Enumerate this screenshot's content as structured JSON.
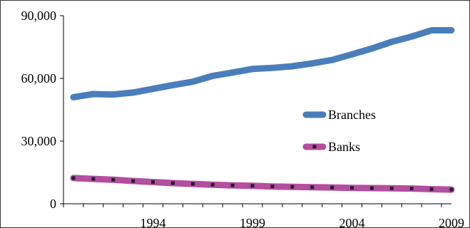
{
  "chart_data": {
    "type": "line",
    "title": "",
    "xlabel": "",
    "ylabel": "",
    "x": [
      1990,
      1991,
      1992,
      1993,
      1994,
      1995,
      1996,
      1997,
      1998,
      1999,
      2000,
      2001,
      2002,
      2003,
      2004,
      2005,
      2006,
      2007,
      2008,
      2009
    ],
    "x_ticks": [
      "1994",
      "1999",
      "2004",
      "2009"
    ],
    "y_ticks": [
      "0",
      "30,000",
      "60,000",
      "90,000"
    ],
    "ylim": [
      0,
      90000
    ],
    "grid": false,
    "legend_position": "right-center",
    "series": [
      {
        "name": "Branches",
        "color": "#4a7ebb",
        "marker": "none",
        "values": [
          51000,
          52500,
          52300,
          53200,
          55000,
          56800,
          58400,
          61200,
          62800,
          64500,
          65000,
          65800,
          67200,
          68800,
          71500,
          74300,
          77500,
          80000,
          83000,
          83000
        ]
      },
      {
        "name": "Banks",
        "color": "#b44ea0",
        "marker": "square",
        "marker_color": "#222222",
        "values": [
          12300,
          11900,
          11500,
          10900,
          10400,
          9900,
          9500,
          9100,
          8800,
          8600,
          8300,
          8100,
          7900,
          7800,
          7600,
          7500,
          7400,
          7300,
          7000,
          6800
        ]
      }
    ]
  }
}
